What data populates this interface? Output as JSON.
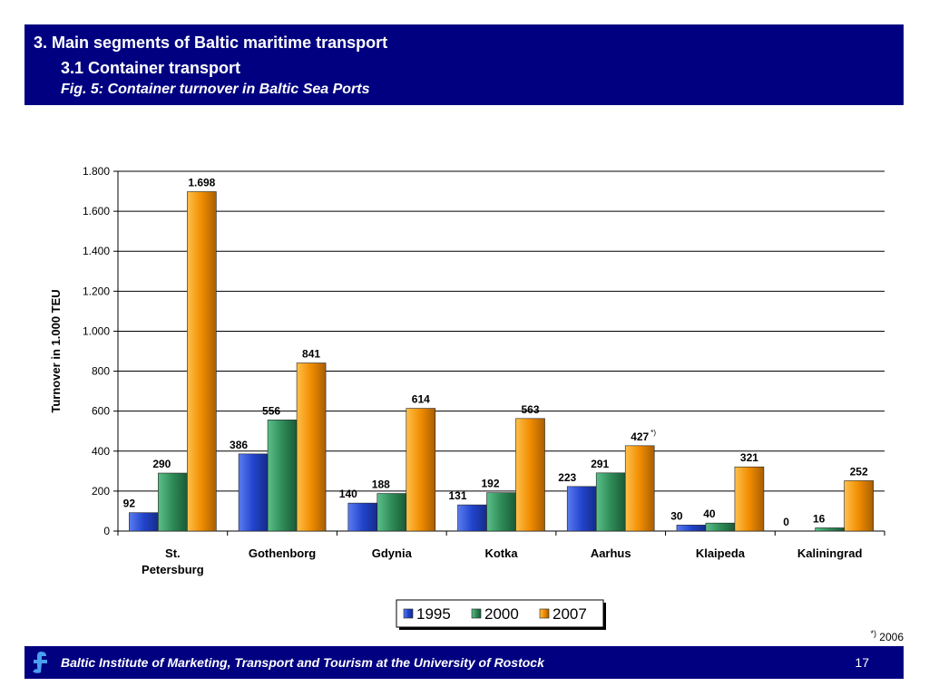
{
  "header": {
    "line1": "3. Main segments of Baltic maritime transport",
    "line2": "3.1 Container transport",
    "line3": "Fig. 5: Container turnover in Baltic Sea Ports"
  },
  "chart_data": {
    "type": "bar",
    "title": "",
    "xlabel": "",
    "ylabel": "Turnover in 1.000 TEU",
    "ylim": [
      0,
      1800
    ],
    "yticks": [
      0,
      200,
      400,
      600,
      800,
      1000,
      1200,
      1400,
      1600,
      1800
    ],
    "ytick_labels": [
      "0",
      "200",
      "400",
      "600",
      "800",
      "1.000",
      "1.200",
      "1.400",
      "1.600",
      "1.800"
    ],
    "grid": true,
    "legend_position": "bottom",
    "categories": [
      "St. Petersburg",
      "Gothenborg",
      "Gdynia",
      "Kotka",
      "Aarhus",
      "Klaipeda",
      "Kaliningrad"
    ],
    "category_label_lines": [
      [
        "St.",
        "Petersburg"
      ],
      [
        "Gothenborg"
      ],
      [
        "Gdynia"
      ],
      [
        "Kotka"
      ],
      [
        "Aarhus"
      ],
      [
        "Klaipeda"
      ],
      [
        "Kaliningrad"
      ]
    ],
    "series": [
      {
        "name": "1995",
        "color": "#2244cc",
        "values": [
          92,
          386,
          140,
          131,
          223,
          30,
          0
        ],
        "labels": [
          "92",
          "386",
          "140",
          "131",
          "223",
          "30",
          "0"
        ]
      },
      {
        "name": "2000",
        "color": "#2e8b57",
        "values": [
          290,
          556,
          188,
          192,
          291,
          40,
          16
        ],
        "labels": [
          "290",
          "556",
          "188",
          "192",
          "291",
          "40",
          "16"
        ]
      },
      {
        "name": "2007",
        "color": "#f08c00",
        "values": [
          1698,
          841,
          614,
          563,
          427,
          321,
          252
        ],
        "labels": [
          "1.698",
          "841",
          "614",
          "563",
          "427",
          "321",
          "252"
        ]
      }
    ],
    "annotation": {
      "category": "Aarhus",
      "series": "2007",
      "text": "*)"
    }
  },
  "footnote": {
    "mark": "*)",
    "text": " 2006"
  },
  "footer": {
    "text": "Baltic Institute of Marketing, Transport and Tourism at the University of Rostock",
    "page": "17"
  }
}
